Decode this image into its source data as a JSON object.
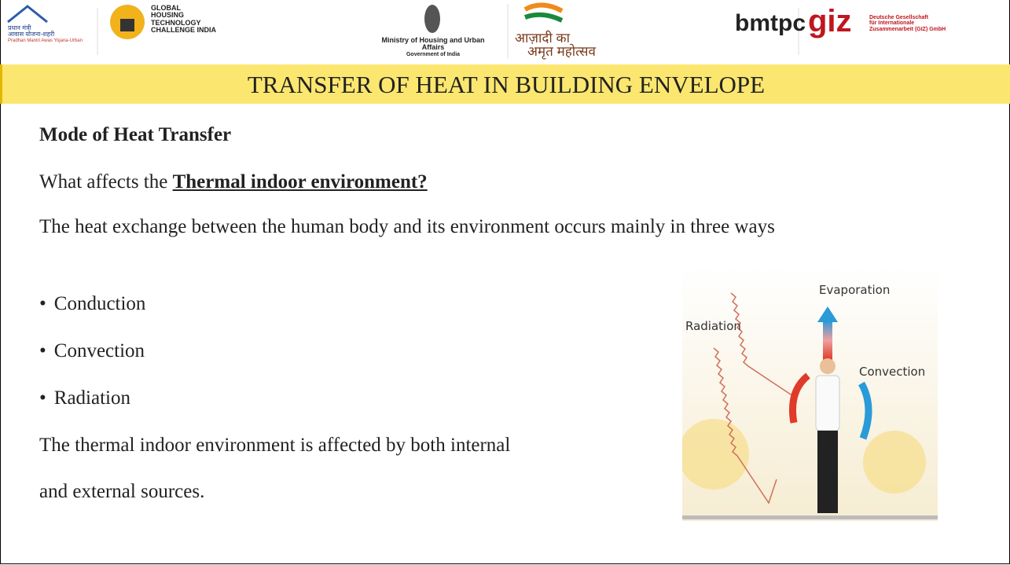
{
  "header": {
    "pmay": [
      "प्रधान मंत्री",
      "आवास योजना-शहरी",
      "Pradhan Mantri Awas Yojana-Urban"
    ],
    "ghtc": [
      "GLOBAL",
      "HOUSING",
      "TECHNOLOGY",
      "CHALLENGE INDIA"
    ],
    "ministry": [
      "Ministry of Housing and Urban Affairs",
      "Government of India"
    ],
    "azadi": [
      "आज़ादी का",
      "अमृत महोत्सव"
    ],
    "bmtpc": "bmtpc",
    "giz": {
      "mark": "giz",
      "lines": [
        "Deutsche Gesellschaft",
        "für Internationale",
        "Zusammenarbeit (GIZ) GmbH"
      ]
    }
  },
  "title": "TRANSFER OF HEAT IN BUILDING ENVELOPE",
  "content": {
    "heading": "Mode of Heat Transfer",
    "intro": {
      "prefix": "What affects the ",
      "emphasis": "Thermal indoor environment?"
    },
    "paragraph": "The heat exchange between the human body and its environment occurs mainly in three ways",
    "bullets": [
      "Conduction",
      "Convection",
      "Radiation"
    ],
    "closing": [
      "The thermal indoor environment is affected by both internal",
      "and external sources."
    ]
  },
  "figure": {
    "labels": {
      "evaporation": "Evaporation",
      "radiation": "Radiation",
      "convection": "Convection"
    }
  }
}
